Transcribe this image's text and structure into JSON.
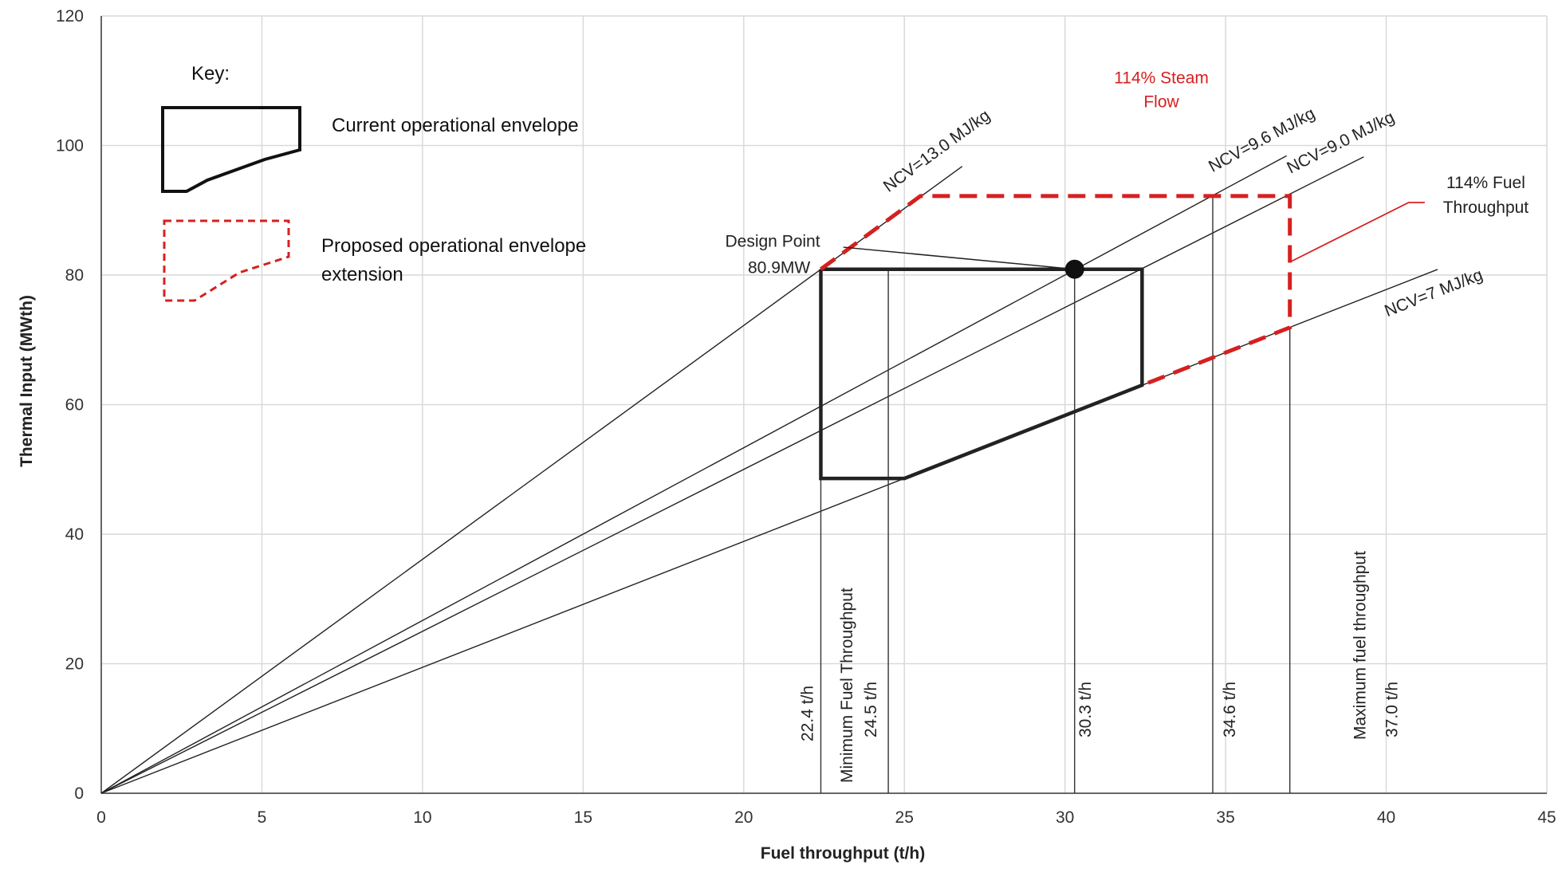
{
  "chart_data": {
    "type": "line",
    "xlabel": "Fuel throughput  (t/h)",
    "ylabel": "Thermal Input (MWth)",
    "xlim": [
      0,
      45
    ],
    "ylim": [
      0,
      120
    ],
    "x_ticks": [
      "0",
      "5",
      "10",
      "15",
      "20",
      "25",
      "30",
      "35",
      "40",
      "45"
    ],
    "y_ticks": [
      "0",
      "20",
      "40",
      "60",
      "80",
      "100",
      "120"
    ],
    "grid": true,
    "ncv_lines": [
      {
        "label": "NCV=13.0 MJ/kg",
        "slope_mw_per_tph": 3.611,
        "x_end": 26.8
      },
      {
        "label": "NCV=9.6 MJ/kg",
        "slope_mw_per_tph": 2.667,
        "x_end": 36.9
      },
      {
        "label": "NCV=9.0 MJ/kg",
        "slope_mw_per_tph": 2.5,
        "x_end": 39.3
      },
      {
        "label": "NCV=7 MJ/kg",
        "slope_mw_per_tph": 1.944,
        "x_end": 41.6
      }
    ],
    "current_envelope": [
      [
        22.4,
        80.9
      ],
      [
        32.4,
        80.9
      ],
      [
        32.4,
        63.0
      ],
      [
        25.0,
        48.6
      ],
      [
        22.4,
        48.6
      ],
      [
        22.4,
        80.9
      ]
    ],
    "proposed_extension": [
      [
        22.4,
        80.9
      ],
      [
        25.5,
        92.2
      ],
      [
        37.0,
        92.2
      ],
      [
        37.0,
        71.9
      ],
      [
        32.4,
        63.0
      ]
    ],
    "design_point": {
      "x": 30.3,
      "y": 80.9,
      "label_line1": "Design Point",
      "label_line2": "80.9MW"
    },
    "vertical_markers": [
      {
        "x": 22.4,
        "label": "22.4 t/h"
      },
      {
        "x": 24.5,
        "label": "24.5 t/h",
        "caption": "Minimum Fuel  Throughput"
      },
      {
        "x": 30.3,
        "label": "30.3 t/h"
      },
      {
        "x": 34.6,
        "label": "34.6 t/h"
      },
      {
        "x": 37.0,
        "label": "37.0 t/h",
        "caption": "Maximum fuel throughput"
      }
    ],
    "annotations": {
      "steam_line1": "114% Steam",
      "steam_line2": "Flow",
      "fuel_line1": "114% Fuel",
      "fuel_line2": "Throughput"
    },
    "legend": {
      "title": "Key:",
      "current": "Current operational envelope",
      "proposed_line1": "Proposed    operational    envelope",
      "proposed_line2": "extension",
      "placement": "top-left"
    },
    "colors": {
      "envelope": "#222222",
      "extension": "#d62020",
      "grid": "#d9d9d9",
      "ncv": "#222222"
    }
  }
}
